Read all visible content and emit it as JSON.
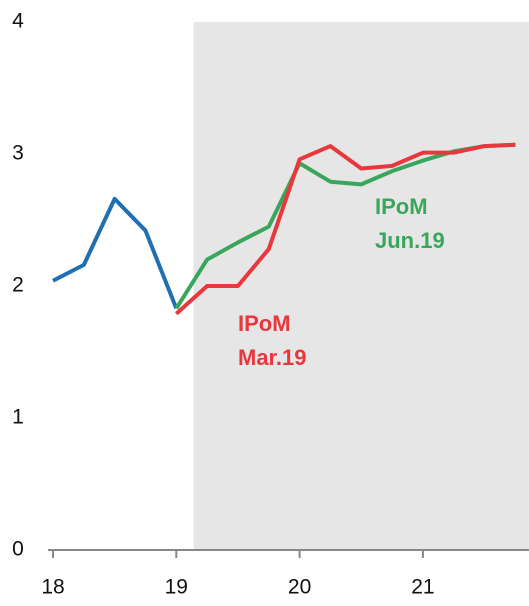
{
  "chart_data": {
    "type": "line",
    "xlim": [
      18,
      21.86
    ],
    "xticks": [
      18,
      19,
      20,
      21
    ],
    "ylim": [
      0,
      4
    ],
    "yticks": [
      0,
      1,
      2,
      3,
      4
    ],
    "shade_from": 19.14,
    "series": [
      {
        "color": "#1f6fb2",
        "x": [
          18,
          18.25,
          18.5,
          18.75,
          19
        ],
        "values": [
          2.04,
          2.16,
          2.66,
          2.42,
          1.83
        ]
      },
      {
        "color": "#3aa65c",
        "x": [
          19,
          19.25,
          19.5,
          19.75,
          20,
          20.25,
          20.5,
          20.75,
          21,
          21.25,
          21.5,
          21.75
        ],
        "values": [
          1.83,
          2.2,
          2.33,
          2.45,
          2.93,
          2.79,
          2.77,
          2.87,
          2.95,
          3.02,
          3.06,
          3.07
        ]
      },
      {
        "color": "#e8383d",
        "x": [
          19,
          19.25,
          19.5,
          19.75,
          20,
          20.25,
          20.5,
          20.75,
          21,
          21.25,
          21.5,
          21.75
        ],
        "values": [
          1.79,
          2.0,
          2.0,
          2.28,
          2.96,
          3.06,
          2.89,
          2.91,
          3.01,
          3.01,
          3.06,
          3.07
        ]
      }
    ],
    "annotations": [
      {
        "lines": [
          "IPoM",
          "Mar.19"
        ],
        "color": "#e8383d"
      },
      {
        "lines": [
          "IPoM",
          "Jun.19"
        ],
        "color": "#3aa65c"
      }
    ]
  }
}
